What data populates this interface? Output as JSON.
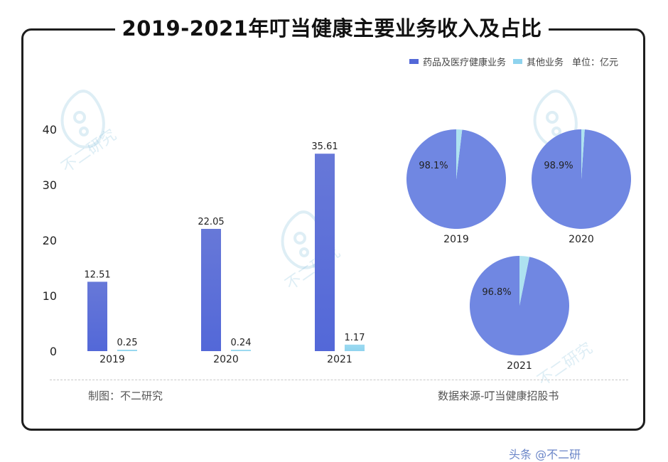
{
  "title": "2019-2021年叮当健康主要业务收入及占比",
  "legend": {
    "series1": "药品及医疗健康业务",
    "series2": "其他业务",
    "unit": "单位：亿元"
  },
  "colors": {
    "series1": "#5368d8",
    "series2": "#8fd3ee",
    "pie_main": "#7087e2",
    "pie_minor": "#aee2f0"
  },
  "footer": {
    "left": "制图：不二研究",
    "right": "数据来源-叮当健康招股书"
  },
  "watermark": "不二研究",
  "corner_overflow_text": "头条 @不二研",
  "chart_data": [
    {
      "type": "bar",
      "categories": [
        "2019",
        "2020",
        "2021"
      ],
      "series": [
        {
          "name": "药品及医疗健康业务",
          "values": [
            12.51,
            22.05,
            35.61
          ]
        },
        {
          "name": "其他业务",
          "values": [
            0.25,
            0.24,
            1.17
          ]
        }
      ],
      "value_labels": [
        [
          "12.51",
          "22.05",
          "35.61"
        ],
        [
          "0.25",
          "0.24",
          "1.17"
        ]
      ],
      "yticks": [
        "0",
        "10",
        "20",
        "30",
        "40"
      ],
      "ylim": [
        0,
        40
      ],
      "ylabel": "亿元",
      "legend_position": "top-right"
    },
    {
      "type": "pie",
      "pies": [
        {
          "year": "2019",
          "main_pct": 98.1,
          "label": "98.1%"
        },
        {
          "year": "2020",
          "main_pct": 98.9,
          "label": "98.9%"
        },
        {
          "year": "2021",
          "main_pct": 96.8,
          "label": "96.8%"
        }
      ]
    }
  ]
}
